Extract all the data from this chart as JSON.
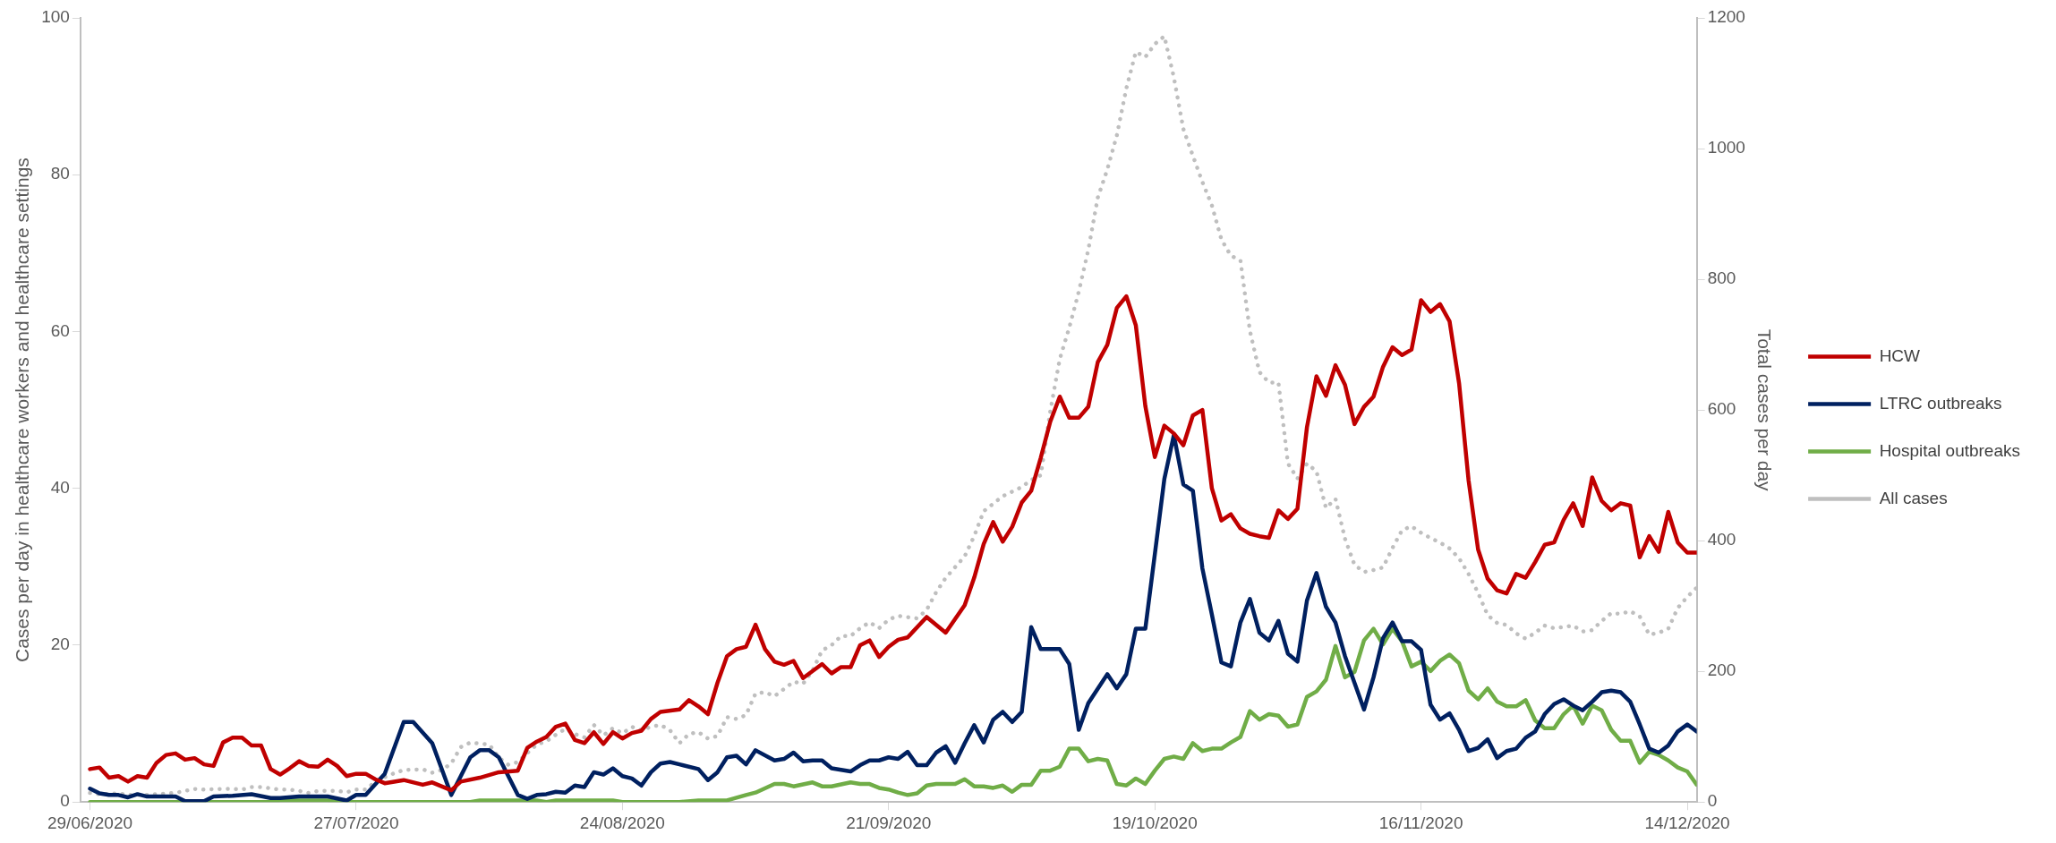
{
  "chart_data": {
    "type": "line",
    "ylabel": "Cases per day in healthcare workers and healthcare settings",
    "y2label": "Total cases per day",
    "xlim": [
      "2020-06-28",
      "2020-12-15"
    ],
    "xticks": [
      {
        "value": "2020-06-29",
        "label": "29/06/2020"
      },
      {
        "value": "2020-07-27",
        "label": "27/07/2020"
      },
      {
        "value": "2020-08-24",
        "label": "24/08/2020"
      },
      {
        "value": "2020-09-21",
        "label": "21/09/2020"
      },
      {
        "value": "2020-10-19",
        "label": "19/10/2020"
      },
      {
        "value": "2020-11-16",
        "label": "16/11/2020"
      },
      {
        "value": "2020-12-14",
        "label": "14/12/2020"
      }
    ],
    "ylim": [
      0,
      100
    ],
    "yticks": [
      0,
      20,
      40,
      60,
      80,
      100
    ],
    "y2lim": [
      0,
      1200
    ],
    "y2ticks": [
      0,
      200,
      400,
      600,
      800,
      1000,
      1200
    ],
    "grid": false,
    "legend": "right",
    "marker": "none",
    "line_style": "solid",
    "series": [
      {
        "name": "HCW",
        "color": "#c00000",
        "x": [
          "2020-06-29",
          "2020-06-30",
          "2020-07-01",
          "2020-07-02",
          "2020-07-03",
          "2020-07-04",
          "2020-07-05",
          "2020-07-06",
          "2020-07-07",
          "2020-07-08",
          "2020-07-09",
          "2020-07-10",
          "2020-07-11",
          "2020-07-12",
          "2020-07-13",
          "2020-07-14",
          "2020-07-15",
          "2020-07-16",
          "2020-07-17",
          "2020-07-18",
          "2020-07-19",
          "2020-07-20",
          "2020-07-21",
          "2020-07-22",
          "2020-07-23",
          "2020-07-24",
          "2020-07-25",
          "2020-07-26",
          "2020-07-27",
          "2020-07-28",
          "2020-07-29",
          "2020-07-30",
          "2020-08-01",
          "2020-08-03",
          "2020-08-04",
          "2020-08-06",
          "2020-08-07",
          "2020-08-09",
          "2020-08-11",
          "2020-08-13",
          "2020-08-14",
          "2020-08-15",
          "2020-08-16",
          "2020-08-17",
          "2020-08-18",
          "2020-08-19",
          "2020-08-20",
          "2020-08-21",
          "2020-08-22",
          "2020-08-23",
          "2020-08-24",
          "2020-08-25",
          "2020-08-26",
          "2020-08-27",
          "2020-08-28",
          "2020-08-30",
          "2020-08-31",
          "2020-09-01",
          "2020-09-02",
          "2020-09-03",
          "2020-09-04",
          "2020-09-05",
          "2020-09-06",
          "2020-09-07",
          "2020-09-08",
          "2020-09-09",
          "2020-09-10",
          "2020-09-11",
          "2020-09-12",
          "2020-09-14",
          "2020-09-15",
          "2020-09-16",
          "2020-09-17",
          "2020-09-18",
          "2020-09-19",
          "2020-09-20",
          "2020-09-21",
          "2020-09-22",
          "2020-09-23",
          "2020-09-25",
          "2020-09-27",
          "2020-09-29",
          "2020-09-30",
          "2020-10-01",
          "2020-10-02",
          "2020-10-03",
          "2020-10-04",
          "2020-10-05",
          "2020-10-06",
          "2020-10-07",
          "2020-10-08",
          "2020-10-09",
          "2020-10-10",
          "2020-10-11",
          "2020-10-12",
          "2020-10-13",
          "2020-10-14",
          "2020-10-15",
          "2020-10-16",
          "2020-10-17",
          "2020-10-18",
          "2020-10-19",
          "2020-10-20",
          "2020-10-21",
          "2020-10-22",
          "2020-10-23",
          "2020-10-24",
          "2020-10-25",
          "2020-10-26",
          "2020-10-27",
          "2020-10-28",
          "2020-10-29",
          "2020-10-30",
          "2020-10-31",
          "2020-11-01",
          "2020-11-02",
          "2020-11-03",
          "2020-11-04",
          "2020-11-05",
          "2020-11-06",
          "2020-11-07",
          "2020-11-08",
          "2020-11-09",
          "2020-11-10",
          "2020-11-11",
          "2020-11-12",
          "2020-11-13",
          "2020-11-14",
          "2020-11-15",
          "2020-11-16",
          "2020-11-17",
          "2020-11-18",
          "2020-11-19",
          "2020-11-20",
          "2020-11-21",
          "2020-11-22",
          "2020-11-23",
          "2020-11-24",
          "2020-11-25",
          "2020-11-26",
          "2020-11-27",
          "2020-11-28",
          "2020-11-29",
          "2020-11-30",
          "2020-12-01",
          "2020-12-02",
          "2020-12-03",
          "2020-12-04",
          "2020-12-05",
          "2020-12-06",
          "2020-12-07",
          "2020-12-08",
          "2020-12-09",
          "2020-12-10",
          "2020-12-11",
          "2020-12-12",
          "2020-12-13",
          "2020-12-14",
          "2020-12-15"
        ],
        "values": [
          4.2,
          4.4,
          3.1,
          3.3,
          2.6,
          3.3,
          3.1,
          5,
          6,
          6.2,
          5.4,
          5.6,
          4.8,
          4.6,
          7.6,
          8.2,
          8.2,
          7.2,
          7.2,
          4.2,
          3.5,
          4.3,
          5.2,
          4.6,
          4.5,
          5.4,
          4.6,
          3.3,
          3.6,
          3.6,
          2.9,
          2.4,
          2.8,
          2.2,
          2.5,
          1.5,
          2.6,
          3.1,
          3.8,
          4,
          6.9,
          7.7,
          8.3,
          9.6,
          10,
          7.9,
          7.5,
          8.9,
          7.4,
          8.9,
          8.1,
          8.8,
          9.1,
          10.6,
          11.5,
          11.8,
          13,
          12.2,
          11.2,
          15.2,
          18.6,
          19.5,
          19.8,
          22.6,
          19.5,
          17.9,
          17.5,
          18,
          15.8,
          17.6,
          16.4,
          17.2,
          17.2,
          20,
          20.6,
          18.5,
          19.8,
          20.7,
          21,
          23.6,
          21.6,
          25.1,
          28.6,
          32.9,
          35.7,
          33.2,
          35.1,
          38.2,
          39.7,
          43.9,
          48.5,
          51.7,
          49,
          49,
          50.4,
          56.1,
          58.3,
          63,
          64.5,
          60.8,
          50.5,
          44,
          48,
          47,
          45.5,
          49.3,
          50,
          40,
          35.9,
          36.7,
          34.9,
          34.2,
          33.9,
          33.7,
          37.2,
          36.1,
          37.4,
          47.8,
          54.3,
          51.8,
          55.7,
          53.2,
          48.2,
          50.4,
          51.7,
          55.5,
          58,
          57,
          57.7,
          64,
          62.5,
          63.5,
          61.3,
          53.4,
          41,
          32.2,
          28.5,
          27,
          26.6,
          29.1,
          28.6,
          30.6,
          32.8,
          33.1,
          36,
          38.1,
          35.2,
          41.4,
          38.4,
          37.2,
          38.1,
          37.8,
          31.2,
          33.9,
          31.9,
          37,
          33.1,
          31.8,
          31.8
        ]
      },
      {
        "name": "LTRC outbreaks",
        "color": "#002060",
        "x": [
          "2020-06-29",
          "2020-06-30",
          "2020-07-01",
          "2020-07-02",
          "2020-07-03",
          "2020-07-04",
          "2020-07-05",
          "2020-07-08",
          "2020-07-09",
          "2020-07-11",
          "2020-07-12",
          "2020-07-14",
          "2020-07-16",
          "2020-07-18",
          "2020-07-19",
          "2020-07-21",
          "2020-07-24",
          "2020-07-26",
          "2020-07-27",
          "2020-07-28",
          "2020-07-30",
          "2020-08-01",
          "2020-08-02",
          "2020-08-04",
          "2020-08-06",
          "2020-08-08",
          "2020-08-09",
          "2020-08-10",
          "2020-08-11",
          "2020-08-13",
          "2020-08-14",
          "2020-08-15",
          "2020-08-16",
          "2020-08-17",
          "2020-08-18",
          "2020-08-19",
          "2020-08-20",
          "2020-08-21",
          "2020-08-22",
          "2020-08-23",
          "2020-08-24",
          "2020-08-25",
          "2020-08-26",
          "2020-08-27",
          "2020-08-28",
          "2020-08-29",
          "2020-08-30",
          "2020-09-01",
          "2020-09-02",
          "2020-09-03",
          "2020-09-04",
          "2020-09-05",
          "2020-09-06",
          "2020-09-07",
          "2020-09-09",
          "2020-09-10",
          "2020-09-11",
          "2020-09-12",
          "2020-09-13",
          "2020-09-14",
          "2020-09-15",
          "2020-09-17",
          "2020-09-18",
          "2020-09-19",
          "2020-09-20",
          "2020-09-21",
          "2020-09-22",
          "2020-09-23",
          "2020-09-24",
          "2020-09-25",
          "2020-09-26",
          "2020-09-27",
          "2020-09-28",
          "2020-09-29",
          "2020-09-30",
          "2020-10-01",
          "2020-10-02",
          "2020-10-03",
          "2020-10-04",
          "2020-10-05",
          "2020-10-06",
          "2020-10-07",
          "2020-10-09",
          "2020-10-10",
          "2020-10-11",
          "2020-10-12",
          "2020-10-14",
          "2020-10-15",
          "2020-10-16",
          "2020-10-17",
          "2020-10-18",
          "2020-10-19",
          "2020-10-20",
          "2020-10-21",
          "2020-10-22",
          "2020-10-23",
          "2020-10-24",
          "2020-10-25",
          "2020-10-26",
          "2020-10-27",
          "2020-10-28",
          "2020-10-29",
          "2020-10-30",
          "2020-10-31",
          "2020-11-01",
          "2020-11-02",
          "2020-11-03",
          "2020-11-04",
          "2020-11-05",
          "2020-11-06",
          "2020-11-07",
          "2020-11-08",
          "2020-11-10",
          "2020-11-11",
          "2020-11-12",
          "2020-11-13",
          "2020-11-14",
          "2020-11-15",
          "2020-11-16",
          "2020-11-17",
          "2020-11-18",
          "2020-11-19",
          "2020-11-20",
          "2020-11-21",
          "2020-11-22",
          "2020-11-23",
          "2020-11-24",
          "2020-11-25",
          "2020-11-26",
          "2020-11-27",
          "2020-11-28",
          "2020-11-29",
          "2020-11-30",
          "2020-12-01",
          "2020-12-02",
          "2020-12-03",
          "2020-12-04",
          "2020-12-05",
          "2020-12-06",
          "2020-12-07",
          "2020-12-08",
          "2020-12-09",
          "2020-12-10",
          "2020-12-11",
          "2020-12-12",
          "2020-12-13",
          "2020-12-14",
          "2020-12-15"
        ],
        "values": [
          1.7,
          1.1,
          0.9,
          0.9,
          0.6,
          1,
          0.7,
          0.7,
          0.1,
          0.1,
          0.7,
          0.8,
          1,
          0.5,
          0.5,
          0.7,
          0.7,
          0.2,
          0.9,
          0.9,
          3.6,
          10.2,
          10.2,
          7.5,
          0.9,
          5.7,
          6.6,
          6.6,
          5.7,
          0.9,
          0.4,
          0.9,
          1,
          1.3,
          1.2,
          2.1,
          1.9,
          3.8,
          3.5,
          4.3,
          3.3,
          3,
          2.1,
          3.8,
          4.9,
          5.1,
          4.8,
          4.2,
          2.8,
          3.8,
          5.7,
          5.9,
          4.8,
          6.6,
          5.3,
          5.5,
          6.3,
          5.2,
          5.3,
          5.3,
          4.3,
          3.9,
          4.7,
          5.3,
          5.3,
          5.7,
          5.5,
          6.4,
          4.7,
          4.7,
          6.3,
          7.1,
          5,
          7.5,
          9.8,
          7.6,
          10.5,
          11.5,
          10.2,
          11.5,
          22.3,
          19.5,
          19.5,
          17.6,
          9.2,
          12.6,
          16.3,
          14.5,
          16.3,
          22.1,
          22.1,
          31.6,
          41.2,
          46.8,
          40.5,
          39.7,
          29.8,
          23.9,
          17.8,
          17.3,
          22.9,
          25.9,
          21.6,
          20.6,
          23.1,
          18.9,
          17.9,
          25.7,
          29.2,
          24.9,
          22.9,
          18.6,
          11.8,
          15.9,
          20.9,
          22.9,
          20.5,
          20.5,
          19.4,
          12.4,
          10.5,
          11.3,
          9.2,
          6.5,
          6.9,
          8,
          5.6,
          6.5,
          6.8,
          8.2,
          9,
          11.2,
          12.5,
          13.1,
          12.3,
          11.7,
          12.8,
          14,
          14.2,
          14,
          12.8,
          9.9,
          6.8,
          6.3,
          7.2,
          9,
          9.9,
          9
        ]
      },
      {
        "name": "Hospital outbreaks",
        "color": "#70ad47",
        "x": [
          "2020-06-29",
          "2020-07-18",
          "2020-07-19",
          "2020-07-24",
          "2020-07-25",
          "2020-08-08",
          "2020-08-09",
          "2020-08-15",
          "2020-08-16",
          "2020-08-17",
          "2020-08-23",
          "2020-08-24",
          "2020-08-30",
          "2020-09-01",
          "2020-09-04",
          "2020-09-06",
          "2020-09-07",
          "2020-09-09",
          "2020-09-10",
          "2020-09-11",
          "2020-09-13",
          "2020-09-14",
          "2020-09-15",
          "2020-09-17",
          "2020-09-18",
          "2020-09-19",
          "2020-09-20",
          "2020-09-21",
          "2020-09-22",
          "2020-09-23",
          "2020-09-24",
          "2020-09-25",
          "2020-09-26",
          "2020-09-28",
          "2020-09-29",
          "2020-09-30",
          "2020-10-01",
          "2020-10-02",
          "2020-10-03",
          "2020-10-04",
          "2020-10-05",
          "2020-10-06",
          "2020-10-07",
          "2020-10-08",
          "2020-10-09",
          "2020-10-10",
          "2020-10-11",
          "2020-10-12",
          "2020-10-13",
          "2020-10-14",
          "2020-10-15",
          "2020-10-16",
          "2020-10-17",
          "2020-10-18",
          "2020-10-19",
          "2020-10-20",
          "2020-10-21",
          "2020-10-22",
          "2020-10-23",
          "2020-10-24",
          "2020-10-25",
          "2020-10-26",
          "2020-10-27",
          "2020-10-28",
          "2020-10-29",
          "2020-10-30",
          "2020-10-31",
          "2020-11-01",
          "2020-11-02",
          "2020-11-03",
          "2020-11-04",
          "2020-11-05",
          "2020-11-06",
          "2020-11-07",
          "2020-11-08",
          "2020-11-09",
          "2020-11-10",
          "2020-11-11",
          "2020-11-12",
          "2020-11-13",
          "2020-11-14",
          "2020-11-15",
          "2020-11-16",
          "2020-11-17",
          "2020-11-18",
          "2020-11-19",
          "2020-11-20",
          "2020-11-21",
          "2020-11-22",
          "2020-11-23",
          "2020-11-24",
          "2020-11-25",
          "2020-11-26",
          "2020-11-27",
          "2020-11-28",
          "2020-11-29",
          "2020-11-30",
          "2020-12-01",
          "2020-12-02",
          "2020-12-03",
          "2020-12-04",
          "2020-12-05",
          "2020-12-06",
          "2020-12-07",
          "2020-12-08",
          "2020-12-09",
          "2020-12-10",
          "2020-12-11",
          "2020-12-12",
          "2020-12-13",
          "2020-12-14",
          "2020-12-15"
        ],
        "values": [
          0,
          0,
          0.2,
          0.2,
          0,
          0,
          0.2,
          0.2,
          0,
          0.2,
          0.2,
          0,
          0,
          0.2,
          0.2,
          0.9,
          1.2,
          2.3,
          2.3,
          2,
          2.5,
          2,
          2,
          2.5,
          2.3,
          2.3,
          1.8,
          1.6,
          1.2,
          0.9,
          1.1,
          2.1,
          2.3,
          2.3,
          2.9,
          2,
          2,
          1.8,
          2.1,
          1.3,
          2.2,
          2.2,
          4,
          4,
          4.5,
          6.8,
          6.8,
          5.2,
          5.5,
          5.3,
          2.3,
          2.1,
          3,
          2.3,
          4,
          5.5,
          5.8,
          5.5,
          7.5,
          6.5,
          6.8,
          6.8,
          7.6,
          8.3,
          11.6,
          10.5,
          11.2,
          11,
          9.6,
          9.9,
          13.4,
          14.1,
          15.6,
          19.9,
          15.9,
          16.6,
          20.6,
          22.1,
          20.1,
          22.1,
          20.5,
          17.3,
          17.9,
          16.7,
          18,
          18.8,
          17.7,
          14.2,
          13.1,
          14.5,
          12.8,
          12.2,
          12.2,
          13,
          10.4,
          9.4,
          9.4,
          11.2,
          12.3,
          10,
          12.3,
          11.7,
          9.2,
          7.8,
          7.8,
          5,
          6.4,
          6,
          5.3,
          4.4,
          3.9,
          2.2
        ]
      },
      {
        "name": "All cases",
        "color": "#bfbfbf",
        "axis": "y2",
        "line_style": "dotted",
        "x": [
          "2020-06-29",
          "2020-06-30",
          "2020-07-02",
          "2020-07-03",
          "2020-07-05",
          "2020-07-07",
          "2020-07-08",
          "2020-07-09",
          "2020-07-10",
          "2020-07-11",
          "2020-07-13",
          "2020-07-14",
          "2020-07-15",
          "2020-07-16",
          "2020-07-17",
          "2020-07-19",
          "2020-07-20",
          "2020-07-21",
          "2020-07-22",
          "2020-07-23",
          "2020-07-25",
          "2020-07-26",
          "2020-07-27",
          "2020-07-28",
          "2020-07-29",
          "2020-07-30",
          "2020-07-31",
          "2020-08-01",
          "2020-08-03",
          "2020-08-04",
          "2020-08-05",
          "2020-08-06",
          "2020-08-07",
          "2020-08-08",
          "2020-08-10",
          "2020-08-11",
          "2020-08-12",
          "2020-08-13",
          "2020-08-14",
          "2020-08-15",
          "2020-08-16",
          "2020-08-17",
          "2020-08-18",
          "2020-08-19",
          "2020-08-20",
          "2020-08-21",
          "2020-08-22",
          "2020-08-23",
          "2020-08-24",
          "2020-08-25",
          "2020-08-26",
          "2020-08-27",
          "2020-08-28",
          "2020-08-29",
          "2020-08-30",
          "2020-08-31",
          "2020-09-01",
          "2020-09-02",
          "2020-09-03",
          "2020-09-04",
          "2020-09-05",
          "2020-09-06",
          "2020-09-07",
          "2020-09-08",
          "2020-09-09",
          "2020-09-10",
          "2020-09-11",
          "2020-09-12",
          "2020-09-13",
          "2020-09-14",
          "2020-09-15",
          "2020-09-16",
          "2020-09-17",
          "2020-09-18",
          "2020-09-19",
          "2020-09-20",
          "2020-09-21",
          "2020-09-22",
          "2020-09-24",
          "2020-09-25",
          "2020-09-26",
          "2020-09-27",
          "2020-09-29",
          "2020-09-30",
          "2020-10-01",
          "2020-10-03",
          "2020-10-05",
          "2020-10-06",
          "2020-10-07",
          "2020-10-08",
          "2020-10-09",
          "2020-10-10",
          "2020-10-11",
          "2020-10-12",
          "2020-10-13",
          "2020-10-14",
          "2020-10-15",
          "2020-10-16",
          "2020-10-17",
          "2020-10-18",
          "2020-10-19",
          "2020-10-20",
          "2020-10-21",
          "2020-10-22",
          "2020-10-23",
          "2020-10-24",
          "2020-10-25",
          "2020-10-26",
          "2020-10-27",
          "2020-10-28",
          "2020-10-29",
          "2020-10-30",
          "2020-10-31",
          "2020-11-01",
          "2020-11-02",
          "2020-11-03",
          "2020-11-04",
          "2020-11-05",
          "2020-11-06",
          "2020-11-07",
          "2020-11-08",
          "2020-11-09",
          "2020-11-10",
          "2020-11-11",
          "2020-11-12",
          "2020-11-13",
          "2020-11-14",
          "2020-11-15",
          "2020-11-16",
          "2020-11-17",
          "2020-11-18",
          "2020-11-19",
          "2020-11-20",
          "2020-11-21",
          "2020-11-22",
          "2020-11-23",
          "2020-11-24",
          "2020-11-25",
          "2020-11-26",
          "2020-11-27",
          "2020-11-28",
          "2020-11-29",
          "2020-11-30",
          "2020-12-01",
          "2020-12-02",
          "2020-12-03",
          "2020-12-04",
          "2020-12-05",
          "2020-12-06",
          "2020-12-07",
          "2020-12-08",
          "2020-12-09",
          "2020-12-10",
          "2020-12-11",
          "2020-12-12",
          "2020-12-13",
          "2020-12-14",
          "2020-12-15"
        ],
        "values": [
          14,
          12,
          13,
          11,
          11,
          13,
          14,
          17,
          20,
          19,
          20,
          20,
          19,
          23,
          23,
          19,
          19,
          17,
          14,
          17,
          17,
          15,
          19,
          19,
          31,
          38,
          44,
          49,
          50,
          45,
          49,
          59,
          84,
          91,
          88,
          68,
          57,
          61,
          75,
          88,
          93,
          103,
          112,
          104,
          99,
          118,
          102,
          113,
          105,
          115,
          110,
          115,
          118,
          110,
          90,
          104,
          107,
          97,
          101,
          130,
          127,
          133,
          166,
          168,
          162,
          173,
          184,
          181,
          201,
          232,
          240,
          254,
          254,
          266,
          275,
          266,
          279,
          285,
          281,
          294,
          321,
          343,
          376,
          407,
          445,
          468,
          482,
          493,
          500,
          598,
          678,
          726,
          781,
          845,
          925,
          968,
          1020,
          1092,
          1148,
          1140,
          1160,
          1172,
          1109,
          1030,
          989,
          949,
          913,
          861,
          836,
          829,
          721,
          658,
          642,
          642,
          518,
          495,
          518,
          506,
          450,
          464,
          403,
          363,
          352,
          355,
          359,
          389,
          416,
          422,
          412,
          404,
          397,
          388,
          373,
          349,
          320,
          286,
          274,
          271,
          258,
          250,
          259,
          270,
          266,
          268,
          270,
          261,
          263,
          277,
          289,
          288,
          292,
          284,
          256,
          259,
          265,
          297,
          314,
          328
        ]
      }
    ]
  }
}
